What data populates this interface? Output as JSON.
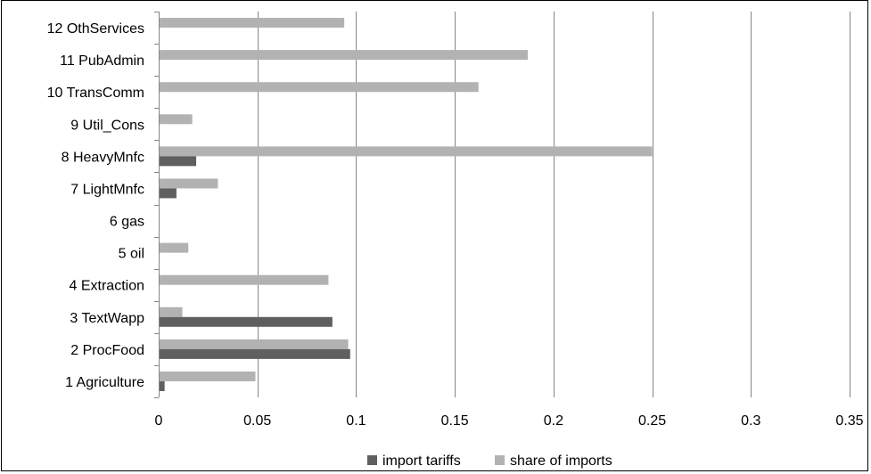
{
  "chart_data": {
    "type": "bar",
    "orientation": "horizontal",
    "categories": [
      "1 Agriculture",
      "2 ProcFood",
      "3 TextWapp",
      "4 Extraction",
      "5 oil",
      "6 gas",
      "7 LightMnfc",
      "8 HeavyMnfc",
      "9 Util_Cons",
      "10 TransComm",
      "11 PubAdmin",
      "12 OthServices"
    ],
    "series": [
      {
        "name": "import tariffs",
        "values": [
          0.003,
          0.097,
          0.088,
          0,
          0,
          0,
          0.009,
          0.019,
          0,
          0,
          0,
          0
        ]
      },
      {
        "name": "share of imports",
        "values": [
          0.049,
          0.096,
          0.012,
          0.086,
          0.015,
          0,
          0.03,
          0.25,
          0.017,
          0.162,
          0.187,
          0.094
        ]
      }
    ],
    "xlim": [
      0,
      0.35
    ],
    "xticks": [
      "0",
      "0.05",
      "0.1",
      "0.15",
      "0.2",
      "0.25",
      "0.3",
      "0.35"
    ],
    "xtick_values": [
      0,
      0.05,
      0.1,
      0.15,
      0.2,
      0.25,
      0.3,
      0.35
    ],
    "grid": "vertical",
    "legend_position": "bottom",
    "colors": {
      "import tariffs": "#5f5f5f",
      "share of imports": "#b2b2b2",
      "gridline": "#868686",
      "axis": "#868686"
    }
  }
}
